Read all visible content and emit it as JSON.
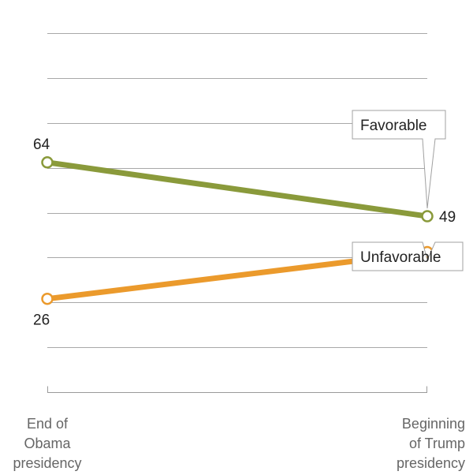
{
  "chart_data": {
    "type": "line",
    "x": [
      "End of Obama presidency",
      "Beginning of Trump presidency"
    ],
    "x_label_lines": [
      [
        "End of",
        "Obama",
        "presidency"
      ],
      [
        "Beginning",
        "of Trump",
        "presidency"
      ]
    ],
    "series": [
      {
        "name": "Favorable",
        "values": [
          64,
          49
        ],
        "color": "#8a9a3b"
      },
      {
        "name": "Unfavorable",
        "values": [
          26,
          39
        ],
        "color": "#eb9a2c"
      }
    ],
    "ylim": [
      0,
      100
    ],
    "grid": true,
    "legend": "inline labels near right end of each line",
    "title": "",
    "xlabel": "",
    "ylabel": ""
  }
}
